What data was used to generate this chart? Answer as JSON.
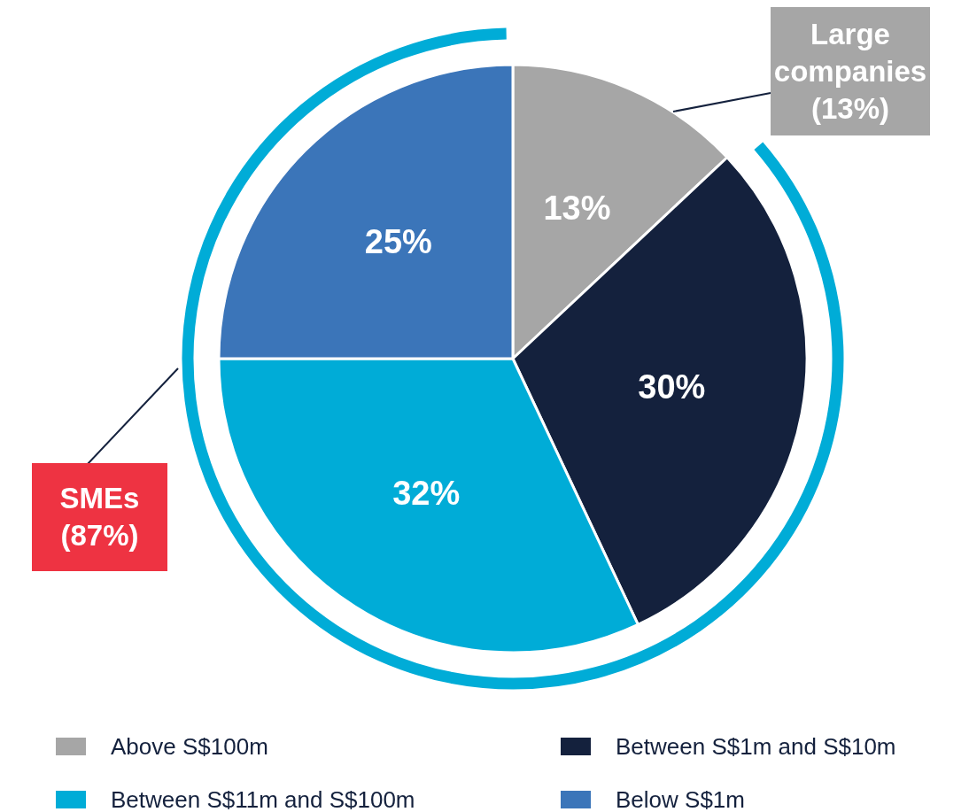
{
  "chart_data": {
    "type": "pie",
    "categories": [
      "Above S$100m",
      "Between S$1m and S$10m",
      "Between S$11m and S$100m",
      "Below S$1m"
    ],
    "values": [
      13,
      30,
      32,
      25
    ],
    "colors": [
      "#a6a6a6",
      "#14213d",
      "#00acd7",
      "#3b75b9"
    ],
    "value_labels": [
      "13%",
      "30%",
      "32%",
      "25%"
    ],
    "legend": "bottom",
    "annotations": [
      "Large companies (13%)",
      "SMEs (87%)"
    ]
  }
}
